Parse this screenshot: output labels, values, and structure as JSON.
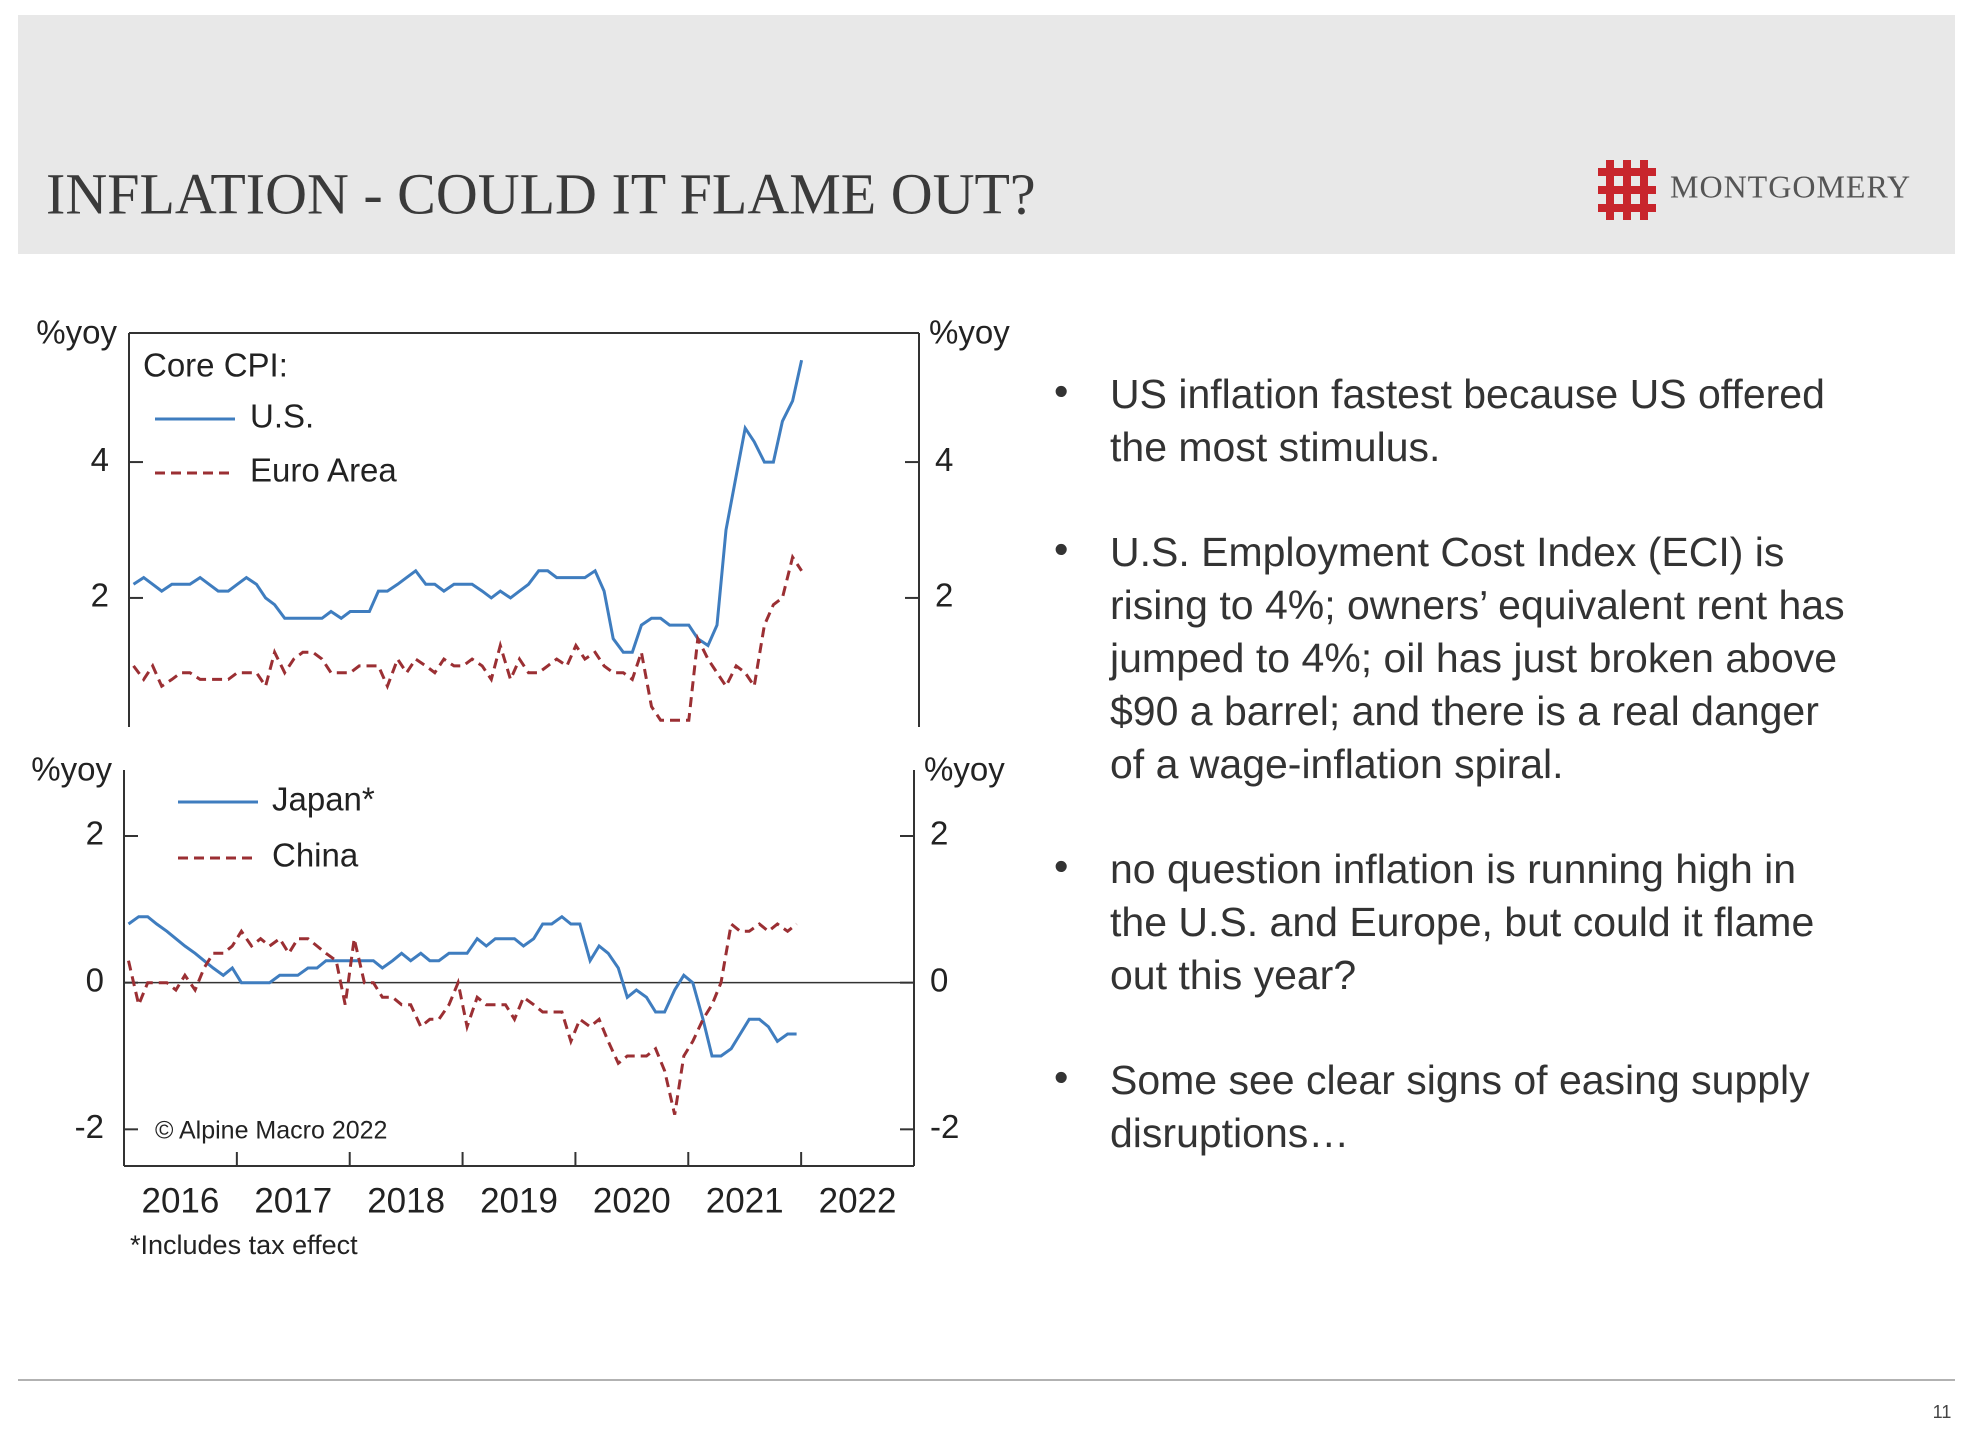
{
  "header": {
    "title": "INFLATION - COULD IT FLAME OUT?",
    "logo": "MONTGOMERY"
  },
  "chart_data": [
    {
      "type": "line",
      "ylabel": "%yoy",
      "y2label": "%yoy",
      "legend_title": "Core CPI:",
      "xlim": [
        2016,
        2023
      ],
      "ylim": [
        0.1,
        5.9
      ],
      "yticks": [
        2,
        4
      ],
      "x": [
        2016.04,
        2016.13,
        2016.21,
        2016.29,
        2016.38,
        2016.46,
        2016.54,
        2016.63,
        2016.71,
        2016.79,
        2016.88,
        2016.96,
        2017.04,
        2017.13,
        2017.21,
        2017.29,
        2017.38,
        2017.46,
        2017.54,
        2017.63,
        2017.71,
        2017.79,
        2017.88,
        2017.96,
        2018.04,
        2018.13,
        2018.21,
        2018.29,
        2018.38,
        2018.46,
        2018.54,
        2018.63,
        2018.71,
        2018.79,
        2018.88,
        2018.96,
        2019.04,
        2019.13,
        2019.21,
        2019.29,
        2019.38,
        2019.46,
        2019.54,
        2019.63,
        2019.71,
        2019.79,
        2019.88,
        2019.96,
        2020.04,
        2020.13,
        2020.21,
        2020.29,
        2020.38,
        2020.46,
        2020.54,
        2020.63,
        2020.71,
        2020.79,
        2020.88,
        2020.96,
        2021.04,
        2021.13,
        2021.21,
        2021.29,
        2021.38,
        2021.46,
        2021.54,
        2021.63,
        2021.71,
        2021.79,
        2021.88,
        2021.96
      ],
      "series": [
        {
          "name": "U.S.",
          "color": "#3f7dbf",
          "dashed": false,
          "values": [
            2.2,
            2.3,
            2.2,
            2.1,
            2.2,
            2.2,
            2.2,
            2.3,
            2.2,
            2.1,
            2.1,
            2.2,
            2.3,
            2.2,
            2.0,
            1.9,
            1.7,
            1.7,
            1.7,
            1.7,
            1.7,
            1.8,
            1.7,
            1.8,
            1.8,
            1.8,
            2.1,
            2.1,
            2.2,
            2.3,
            2.4,
            2.2,
            2.2,
            2.1,
            2.2,
            2.2,
            2.2,
            2.1,
            2.0,
            2.1,
            2.0,
            2.1,
            2.2,
            2.4,
            2.4,
            2.3,
            2.3,
            2.3,
            2.3,
            2.4,
            2.1,
            1.4,
            1.2,
            1.2,
            1.6,
            1.7,
            1.7,
            1.6,
            1.6,
            1.6,
            1.4,
            1.3,
            1.6,
            3.0,
            3.8,
            4.5,
            4.3,
            4.0,
            4.0,
            4.6,
            4.9,
            5.5
          ]
        },
        {
          "name": "Euro Area",
          "color": "#9b2f33",
          "dashed": true,
          "values": [
            1.0,
            0.8,
            1.0,
            0.7,
            0.8,
            0.9,
            0.9,
            0.8,
            0.8,
            0.8,
            0.8,
            0.9,
            0.9,
            0.9,
            0.7,
            1.2,
            0.9,
            1.1,
            1.2,
            1.2,
            1.1,
            0.9,
            0.9,
            0.9,
            1.0,
            1.0,
            1.0,
            0.7,
            1.1,
            0.9,
            1.1,
            1.0,
            0.9,
            1.1,
            1.0,
            1.0,
            1.1,
            1.0,
            0.8,
            1.3,
            0.8,
            1.1,
            0.9,
            0.9,
            1.0,
            1.1,
            1.0,
            1.3,
            1.1,
            1.2,
            1.0,
            0.9,
            0.9,
            0.8,
            1.2,
            0.4,
            0.2,
            0.2,
            0.2,
            0.2,
            1.4,
            1.1,
            0.9,
            0.7,
            1.0,
            0.9,
            0.7,
            1.6,
            1.9,
            2.0,
            2.6,
            2.4
          ]
        }
      ]
    },
    {
      "type": "line",
      "ylabel": "%yoy",
      "y2label": "%yoy",
      "xlim": [
        2016,
        2023
      ],
      "ylim": [
        -2.5,
        2.9
      ],
      "yticks": [
        -2,
        0,
        2
      ],
      "xticks": [
        2016,
        2017,
        2018,
        2019,
        2020,
        2021,
        2022
      ],
      "note": "*Includes tax effect",
      "source": "© Alpine Macro 2022",
      "x": [
        2016.04,
        2016.13,
        2016.21,
        2016.29,
        2016.38,
        2016.46,
        2016.54,
        2016.63,
        2016.71,
        2016.79,
        2016.88,
        2016.96,
        2017.04,
        2017.13,
        2017.21,
        2017.29,
        2017.38,
        2017.46,
        2017.54,
        2017.63,
        2017.71,
        2017.79,
        2017.88,
        2017.96,
        2018.04,
        2018.13,
        2018.21,
        2018.29,
        2018.38,
        2018.46,
        2018.54,
        2018.63,
        2018.71,
        2018.79,
        2018.88,
        2018.96,
        2019.04,
        2019.13,
        2019.21,
        2019.29,
        2019.38,
        2019.46,
        2019.54,
        2019.63,
        2019.71,
        2019.79,
        2019.88,
        2019.96,
        2020.04,
        2020.13,
        2020.21,
        2020.29,
        2020.38,
        2020.46,
        2020.54,
        2020.63,
        2020.71,
        2020.79,
        2020.88,
        2020.96,
        2021.04,
        2021.13,
        2021.21,
        2021.29,
        2021.38,
        2021.46,
        2021.54,
        2021.63,
        2021.71,
        2021.79,
        2021.88,
        2021.96
      ],
      "series": [
        {
          "name": "Japan*",
          "color": "#3f7dbf",
          "dashed": false,
          "values": [
            0.8,
            0.9,
            0.9,
            0.8,
            0.7,
            0.6,
            0.5,
            0.4,
            0.3,
            0.2,
            0.1,
            0.2,
            0.0,
            0.0,
            0.0,
            0.0,
            0.1,
            0.1,
            0.1,
            0.2,
            0.2,
            0.3,
            0.3,
            0.3,
            0.3,
            0.3,
            0.3,
            0.2,
            0.3,
            0.4,
            0.3,
            0.4,
            0.3,
            0.3,
            0.4,
            0.4,
            0.4,
            0.6,
            0.5,
            0.6,
            0.6,
            0.6,
            0.5,
            0.6,
            0.8,
            0.8,
            0.9,
            0.8,
            0.8,
            0.3,
            0.5,
            0.4,
            0.2,
            -0.2,
            -0.1,
            -0.2,
            -0.4,
            -0.4,
            -0.1,
            0.1,
            0.0,
            -0.5,
            -1.0,
            -1.0,
            -0.9,
            -0.7,
            -0.5,
            -0.5,
            -0.6,
            -0.8,
            -0.7,
            -0.7
          ]
        },
        {
          "name": "China",
          "color": "#9b2f33",
          "dashed": true,
          "values": [
            0.3,
            -0.3,
            0.0,
            0.0,
            0.0,
            -0.1,
            0.1,
            -0.1,
            0.2,
            0.4,
            0.4,
            0.5,
            0.7,
            0.5,
            0.6,
            0.5,
            0.6,
            0.4,
            0.6,
            0.6,
            0.5,
            0.4,
            0.3,
            -0.3,
            0.6,
            0.0,
            0.0,
            -0.2,
            -0.2,
            -0.3,
            -0.3,
            -0.6,
            -0.5,
            -0.5,
            -0.3,
            0.0,
            -0.6,
            -0.2,
            -0.3,
            -0.3,
            -0.3,
            -0.5,
            -0.2,
            -0.3,
            -0.4,
            -0.4,
            -0.4,
            -0.8,
            -0.5,
            -0.6,
            -0.5,
            -0.8,
            -1.1,
            -1.0,
            -1.0,
            -1.0,
            -0.9,
            -1.2,
            -1.8,
            -1.0,
            -0.8,
            -0.5,
            -0.3,
            0.0,
            0.8,
            0.7,
            0.7,
            0.8,
            0.7,
            0.8,
            0.7,
            0.8
          ]
        }
      ]
    }
  ],
  "bullets": [
    [
      "US inflation fastest because US offered",
      "the most stimulus."
    ],
    [
      "U.S. Employment Cost Index (ECI) is",
      "rising to 4%; owners’ equivalent rent has",
      "jumped to 4%; oil has just broken above",
      "$90 a barrel; and there is a real danger",
      "of a wage-inflation spiral."
    ],
    [
      "no question inflation is running high in",
      "the U.S. and Europe, but could it flame",
      "out this year?"
    ],
    [
      "Some see clear signs of easing supply",
      "disruptions…"
    ]
  ],
  "page_number": "11"
}
